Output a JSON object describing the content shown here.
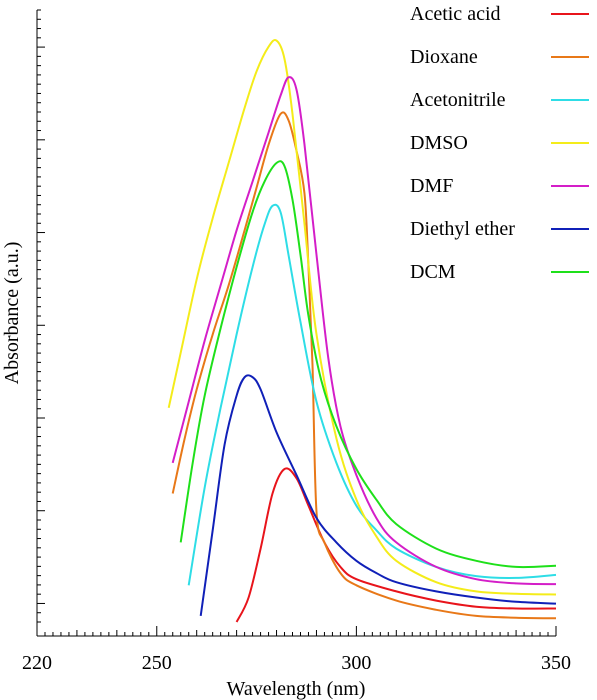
{
  "chart_data": {
    "type": "line",
    "title": "",
    "xlabel": "Wavelength (nm)",
    "ylabel": "Absorbance (a.u.)",
    "xlim": [
      220,
      350
    ],
    "ylim": [
      0,
      1.0
    ],
    "x_ticks": [
      220,
      250,
      300,
      350
    ],
    "y_tick_labels_shown": false,
    "grid": false,
    "legend_position": "top-right",
    "series": [
      {
        "name": "Acetic acid",
        "color": "#e8141b",
        "x": [
          270,
          273,
          276,
          279,
          282,
          285,
          288,
          292,
          296,
          300,
          310,
          320,
          330,
          340,
          350
        ],
        "y": [
          0.0,
          0.04,
          0.12,
          0.21,
          0.25,
          0.235,
          0.19,
          0.13,
          0.09,
          0.07,
          0.05,
          0.035,
          0.025,
          0.022,
          0.022
        ]
      },
      {
        "name": "Dioxane",
        "color": "#e87818",
        "x": [
          254,
          257,
          260,
          264,
          268,
          272,
          275,
          278,
          281,
          283,
          285,
          287,
          288,
          289,
          290,
          292,
          296,
          300,
          310,
          320,
          330,
          340,
          350
        ],
        "y": [
          0.21,
          0.3,
          0.38,
          0.47,
          0.55,
          0.64,
          0.71,
          0.78,
          0.83,
          0.82,
          0.77,
          0.7,
          0.58,
          0.42,
          0.18,
          0.13,
          0.08,
          0.06,
          0.035,
          0.02,
          0.01,
          0.007,
          0.006
        ]
      },
      {
        "name": "Acetonitrile",
        "color": "#2edde6",
        "x": [
          258,
          262,
          266,
          270,
          274,
          277,
          279,
          281,
          283,
          286,
          290,
          295,
          300,
          305,
          310,
          320,
          330,
          340,
          350
        ],
        "y": [
          0.06,
          0.22,
          0.35,
          0.47,
          0.58,
          0.65,
          0.68,
          0.67,
          0.6,
          0.49,
          0.36,
          0.26,
          0.19,
          0.15,
          0.12,
          0.09,
          0.075,
          0.072,
          0.077
        ]
      },
      {
        "name": "DMSO",
        "color": "#f4ec1a",
        "x": [
          253,
          256,
          260,
          264,
          268,
          272,
          275,
          278,
          280,
          282,
          284,
          287,
          290,
          295,
          300,
          305,
          310,
          320,
          330,
          340,
          350
        ],
        "y": [
          0.35,
          0.44,
          0.56,
          0.66,
          0.75,
          0.84,
          0.9,
          0.94,
          0.95,
          0.92,
          0.83,
          0.65,
          0.47,
          0.3,
          0.2,
          0.14,
          0.1,
          0.065,
          0.05,
          0.046,
          0.045
        ]
      },
      {
        "name": "DMF",
        "color": "#d41ec8",
        "x": [
          254,
          258,
          262,
          266,
          270,
          274,
          278,
          281,
          283,
          285,
          287,
          290,
          293,
          296,
          300,
          305,
          310,
          320,
          330,
          340,
          350
        ],
        "y": [
          0.26,
          0.36,
          0.46,
          0.55,
          0.64,
          0.72,
          0.8,
          0.86,
          0.89,
          0.87,
          0.78,
          0.6,
          0.43,
          0.32,
          0.24,
          0.17,
          0.13,
          0.09,
          0.07,
          0.063,
          0.062
        ]
      },
      {
        "name": "Diethyl ether",
        "color": "#1020b8",
        "x": [
          261,
          264,
          267,
          270,
          272,
          274,
          276,
          280,
          285,
          290,
          295,
          300,
          305,
          310,
          320,
          330,
          340,
          350
        ],
        "y": [
          0.01,
          0.15,
          0.29,
          0.37,
          0.4,
          0.4,
          0.38,
          0.31,
          0.24,
          0.17,
          0.13,
          0.1,
          0.08,
          0.065,
          0.05,
          0.04,
          0.033,
          0.03
        ]
      },
      {
        "name": "DCM",
        "color": "#1ee01a",
        "x": [
          256,
          259,
          262,
          266,
          270,
          274,
          277,
          280,
          282,
          284,
          286,
          288,
          291,
          295,
          300,
          305,
          310,
          320,
          330,
          340,
          350
        ],
        "y": [
          0.13,
          0.26,
          0.37,
          0.48,
          0.58,
          0.67,
          0.72,
          0.75,
          0.745,
          0.69,
          0.6,
          0.5,
          0.4,
          0.32,
          0.25,
          0.2,
          0.16,
          0.12,
          0.1,
          0.09,
          0.092
        ]
      }
    ]
  }
}
